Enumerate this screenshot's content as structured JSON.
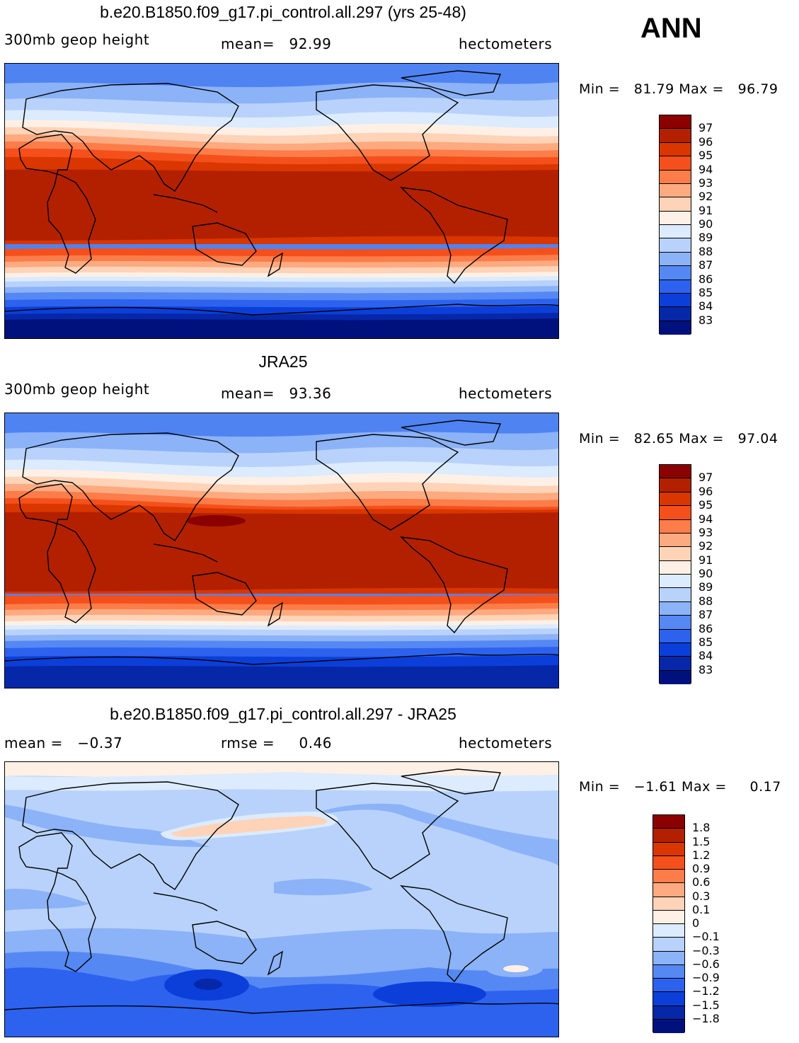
{
  "season": "ANN",
  "panels": [
    {
      "title": "b.e20.B1850.f09_g17.pi_control.all.297 (yrs 25-48)",
      "left_label": "300mb geop height",
      "center_label": "mean=   92.99",
      "right_label": "hectometers",
      "minmax": "Min =   81.79 Max =   96.79",
      "colorbar_ticks": [
        "97",
        "96",
        "95",
        "94",
        "93",
        "92",
        "91",
        "90",
        "89",
        "88",
        "87",
        "86",
        "85",
        "84",
        "83"
      ],
      "colors": [
        "#8b0000",
        "#b22000",
        "#d93600",
        "#f5501c",
        "#fc7d4a",
        "#fdaa80",
        "#fed3b8",
        "#fff0e6",
        "#dcebfd",
        "#b8d2fb",
        "#8cb2f7",
        "#5588f3",
        "#2c62ee",
        "#0c3fd9",
        "#0627a8",
        "#00117e"
      ]
    },
    {
      "title": "JRA25",
      "left_label": "300mb geop height",
      "center_label": "mean=   93.36",
      "right_label": "hectometers",
      "minmax": "Min =   82.65 Max =   97.04",
      "colorbar_ticks": [
        "97",
        "96",
        "95",
        "94",
        "93",
        "92",
        "91",
        "90",
        "89",
        "88",
        "87",
        "86",
        "85",
        "84",
        "83"
      ],
      "colors": [
        "#8b0000",
        "#b22000",
        "#d93600",
        "#f5501c",
        "#fc7d4a",
        "#fdaa80",
        "#fed3b8",
        "#fff0e6",
        "#dcebfd",
        "#b8d2fb",
        "#8cb2f7",
        "#5588f3",
        "#2c62ee",
        "#0c3fd9",
        "#0627a8",
        "#00117e"
      ]
    },
    {
      "title": "b.e20.B1850.f09_g17.pi_control.all.297 - JRA25",
      "left_label": "mean =   −0.37",
      "center_label": "rmse =     0.46",
      "right_label": "hectometers",
      "minmax": "Min =   −1.61 Max =     0.17",
      "colorbar_ticks": [
        "1.8",
        "1.5",
        "1.2",
        "0.9",
        "0.6",
        "0.3",
        "0.1",
        "0",
        "−0.1",
        "−0.3",
        "−0.6",
        "−0.9",
        "−1.2",
        "−1.5",
        "−1.8"
      ],
      "colors": [
        "#8b0000",
        "#b22000",
        "#d93600",
        "#f5501c",
        "#fc7d4a",
        "#fdaa80",
        "#fed3b8",
        "#fff0e6",
        "#dcebfd",
        "#b8d2fb",
        "#8cb2f7",
        "#5588f3",
        "#2c62ee",
        "#0c3fd9",
        "#0627a8",
        "#00117e"
      ]
    }
  ]
}
